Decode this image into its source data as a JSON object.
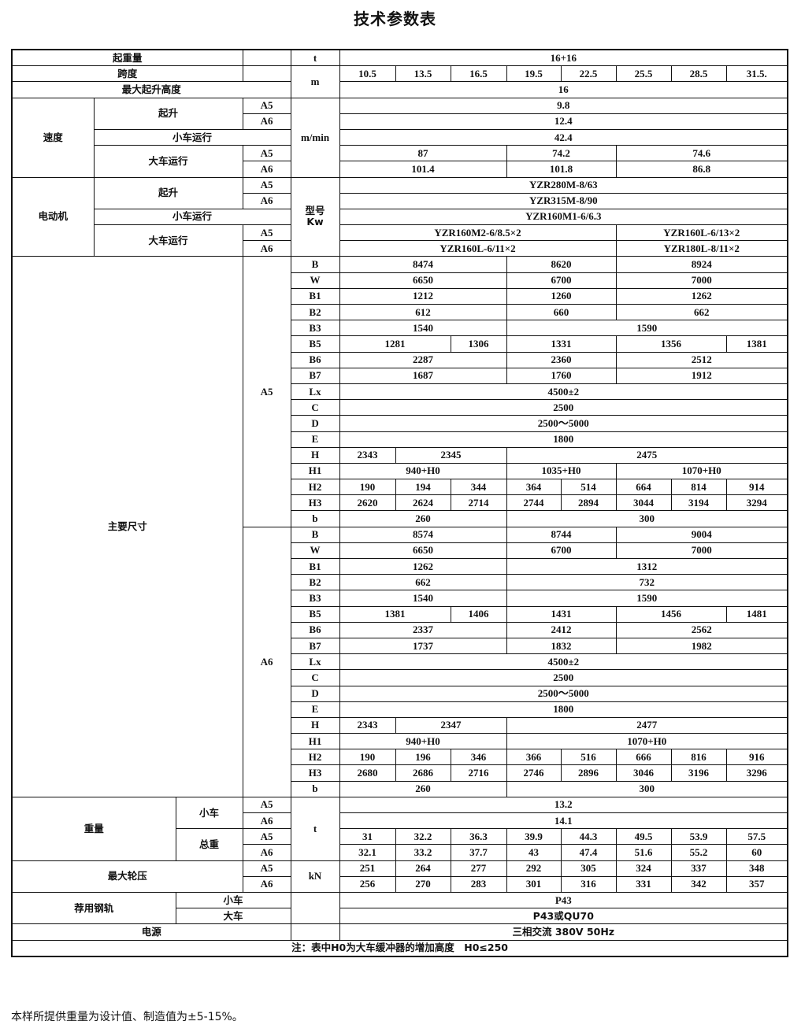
{
  "title": "技术参数表",
  "footer": "本样所提供重量为设计值、制造值为±5-15%。",
  "table": {
    "rows": [
      [
        "起重量",
        "",
        "t",
        "16+16"
      ],
      [
        "跨度",
        "",
        "m",
        "10.5",
        "13.5",
        "16.5",
        "19.5",
        "22.5",
        "25.5",
        "28.5",
        "31.5."
      ],
      [
        "最大起升高度",
        "16"
      ],
      [
        "速度",
        "起升",
        "A5",
        "m/min",
        "9.8"
      ],
      [
        "A6",
        "12.4"
      ],
      [
        "小车运行",
        "42.4"
      ],
      [
        "大车运行",
        "A5",
        "87",
        "74.2",
        "74.6"
      ],
      [
        "A6",
        "101.4",
        "101.8",
        "86.8"
      ],
      [
        "电动机",
        "起升",
        "A5",
        "型号\nKw",
        "YZR280M-8/63"
      ],
      [
        "A6",
        "YZR315M-8/90"
      ],
      [
        "小车运行",
        "YZR160M1-6/6.3"
      ],
      [
        "大车运行",
        "A5",
        "YZR160M2-6/8.5×2",
        "YZR160L-6/13×2"
      ],
      [
        "A6",
        "YZR160L-6/11×2",
        "YZR180L-8/11×2"
      ],
      [
        "主要尺寸",
        "A5",
        "B",
        "8474",
        "8620",
        "8924"
      ],
      [
        "W",
        "6650",
        "6700",
        "7000"
      ],
      [
        "B1",
        "1212",
        "1260",
        "1262"
      ],
      [
        "B2",
        "612",
        "660",
        "662"
      ],
      [
        "B3",
        "1540",
        "1590"
      ],
      [
        "B5",
        "1281",
        "1306",
        "1331",
        "1356",
        "1381"
      ],
      [
        "B6",
        "2287",
        "2360",
        "2512"
      ],
      [
        "B7",
        "1687",
        "1760",
        "1912"
      ],
      [
        "Lx",
        "4500±2"
      ],
      [
        "C",
        "2500"
      ],
      [
        "D",
        "2500～5000"
      ],
      [
        "E",
        "1800"
      ],
      [
        "H",
        "2343",
        "2345",
        "2475"
      ],
      [
        "H1",
        "940+H0",
        "1035+H0",
        "1070+H0"
      ],
      [
        "H2",
        "190",
        "194",
        "344",
        "364",
        "514",
        "664",
        "814",
        "914"
      ],
      [
        "H3",
        "2620",
        "2624",
        "2714",
        "2744",
        "2894",
        "3044",
        "3194",
        "3294"
      ],
      [
        "b",
        "260",
        "300"
      ],
      [
        "A6",
        "B",
        "8574",
        "8744",
        "9004"
      ],
      [
        "W",
        "6650",
        "6700",
        "7000"
      ],
      [
        "B1",
        "1262",
        "1312"
      ],
      [
        "B2",
        "662",
        "732"
      ],
      [
        "B3",
        "1540",
        "1590"
      ],
      [
        "B5",
        "1381",
        "1406",
        "1431",
        "1456",
        "1481"
      ],
      [
        "B6",
        "2337",
        "2412",
        "2562"
      ],
      [
        "B7",
        "1737",
        "1832",
        "1982"
      ],
      [
        "Lx",
        "4500±2"
      ],
      [
        "C",
        "2500"
      ],
      [
        "D",
        "2500～5000"
      ],
      [
        "E",
        "1800"
      ],
      [
        "H",
        "2343",
        "2347",
        "2477"
      ],
      [
        "H1",
        "940+H0",
        "1070+H0"
      ],
      [
        "H2",
        "190",
        "196",
        "346",
        "366",
        "516",
        "666",
        "816",
        "916"
      ],
      [
        "H3",
        "2680",
        "2686",
        "2716",
        "2746",
        "2896",
        "3046",
        "3196",
        "3296"
      ],
      [
        "b",
        "260",
        "300"
      ],
      [
        "重量",
        "小车",
        "A5",
        "t",
        "13.2"
      ],
      [
        "A6",
        "14.1"
      ],
      [
        "总重",
        "A5",
        "31",
        "32.2",
        "36.3",
        "39.9",
        "44.3",
        "49.5",
        "53.9",
        "57.5"
      ],
      [
        "A6",
        "32.1",
        "33.2",
        "37.7",
        "43",
        "47.4",
        "51.6",
        "55.2",
        "60"
      ],
      [
        "最大轮压",
        "A5",
        "kN",
        "251",
        "264",
        "277",
        "292",
        "305",
        "324",
        "337",
        "348"
      ],
      [
        "A6",
        "256",
        "270",
        "283",
        "301",
        "316",
        "331",
        "342",
        "357"
      ],
      [
        "荐用钢轨",
        "小车",
        "",
        "P43"
      ],
      [
        "大车",
        "P43或QU70"
      ],
      [
        "电源",
        "",
        "三相交流 380V 50Hz"
      ],
      [
        "注：表中H0为大车缓冲器的增加高度　H0≤250"
      ]
    ]
  }
}
